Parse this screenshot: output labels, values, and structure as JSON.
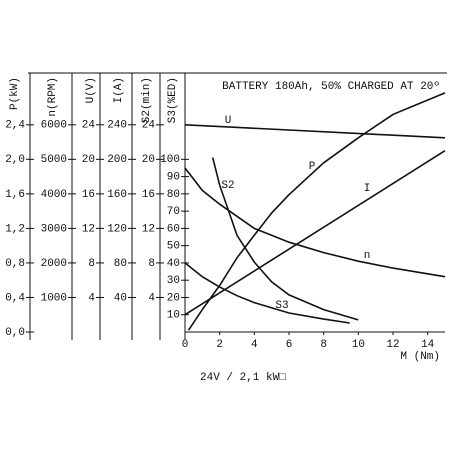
{
  "chart_data": {
    "type": "line",
    "note": "BATTERY 180Ah, 50% CHARGED AT 20º",
    "footer": "24V / 2,1 kW□",
    "xlabel": "M (Nm)",
    "xlim": [
      0,
      15
    ],
    "xticks": [
      0,
      2,
      4,
      6,
      8,
      10,
      12,
      14
    ],
    "y_axes": [
      {
        "label": "P(kW)",
        "ylim": [
          0,
          3
        ],
        "yticks": [
          {
            "value": 0,
            "label": "0,0"
          },
          {
            "value": 0.4,
            "label": "0,4"
          },
          {
            "value": 0.8,
            "label": "0,8"
          },
          {
            "value": 1.2,
            "label": "1,2"
          },
          {
            "value": 1.6,
            "label": "1,6"
          },
          {
            "value": 2.0,
            "label": "2,0"
          },
          {
            "value": 2.4,
            "label": "2,4"
          }
        ]
      },
      {
        "label": "n(RPM)",
        "ylim": [
          0,
          7500
        ],
        "yticks": [
          1000,
          2000,
          3000,
          4000,
          5000,
          6000
        ]
      },
      {
        "label": "U(V)",
        "ylim": [
          0,
          30
        ],
        "yticks": [
          4,
          8,
          12,
          16,
          20,
          24
        ]
      },
      {
        "label": "I(A)",
        "ylim": [
          0,
          300
        ],
        "yticks": [
          40,
          80,
          120,
          160,
          200,
          240
        ]
      },
      {
        "label": "S2(min)",
        "ylim": [
          0,
          30
        ],
        "yticks": [
          4,
          8,
          12,
          16,
          20,
          24
        ]
      },
      {
        "label": "S3(%ED)",
        "ylim": [
          0,
          150
        ],
        "yticks": [
          10,
          20,
          30,
          40,
          50,
          60,
          70,
          80,
          90,
          100
        ]
      }
    ],
    "series": [
      {
        "name": "U",
        "axis": 2,
        "color": "#111111",
        "x": [
          0,
          15
        ],
        "values": [
          24,
          22.5
        ]
      },
      {
        "name": "n",
        "axis": 1,
        "color": "#111111",
        "x": [
          0,
          1,
          2,
          3,
          4,
          6,
          8,
          10,
          12,
          15
        ],
        "values": [
          4750,
          4100,
          3700,
          3350,
          3000,
          2600,
          2300,
          2050,
          1850,
          1600
        ]
      },
      {
        "name": "I",
        "axis": 3,
        "color": "#111111",
        "x": [
          0,
          15
        ],
        "values": [
          20,
          210
        ]
      },
      {
        "name": "P",
        "axis": 0,
        "color": "#111111",
        "x": [
          0.2,
          1,
          2,
          3,
          4,
          5,
          6,
          8,
          10,
          12,
          15
        ],
        "values": [
          0.02,
          0.26,
          0.54,
          0.86,
          1.12,
          1.38,
          1.59,
          1.96,
          2.25,
          2.52,
          2.77
        ]
      },
      {
        "name": "S2",
        "axis": 4,
        "color": "#111111",
        "x": [
          1.6,
          2,
          3,
          4,
          5,
          6,
          8,
          10
        ],
        "values": [
          20.2,
          17,
          11.2,
          8.1,
          5.8,
          4.3,
          2.6,
          1.4
        ]
      },
      {
        "name": "S3",
        "axis": 5,
        "color": "#111111",
        "x": [
          0,
          1,
          2,
          3,
          4,
          6,
          8,
          9.5
        ],
        "values": [
          40,
          32,
          26,
          21,
          17,
          11,
          7.5,
          5.2
        ]
      }
    ]
  }
}
